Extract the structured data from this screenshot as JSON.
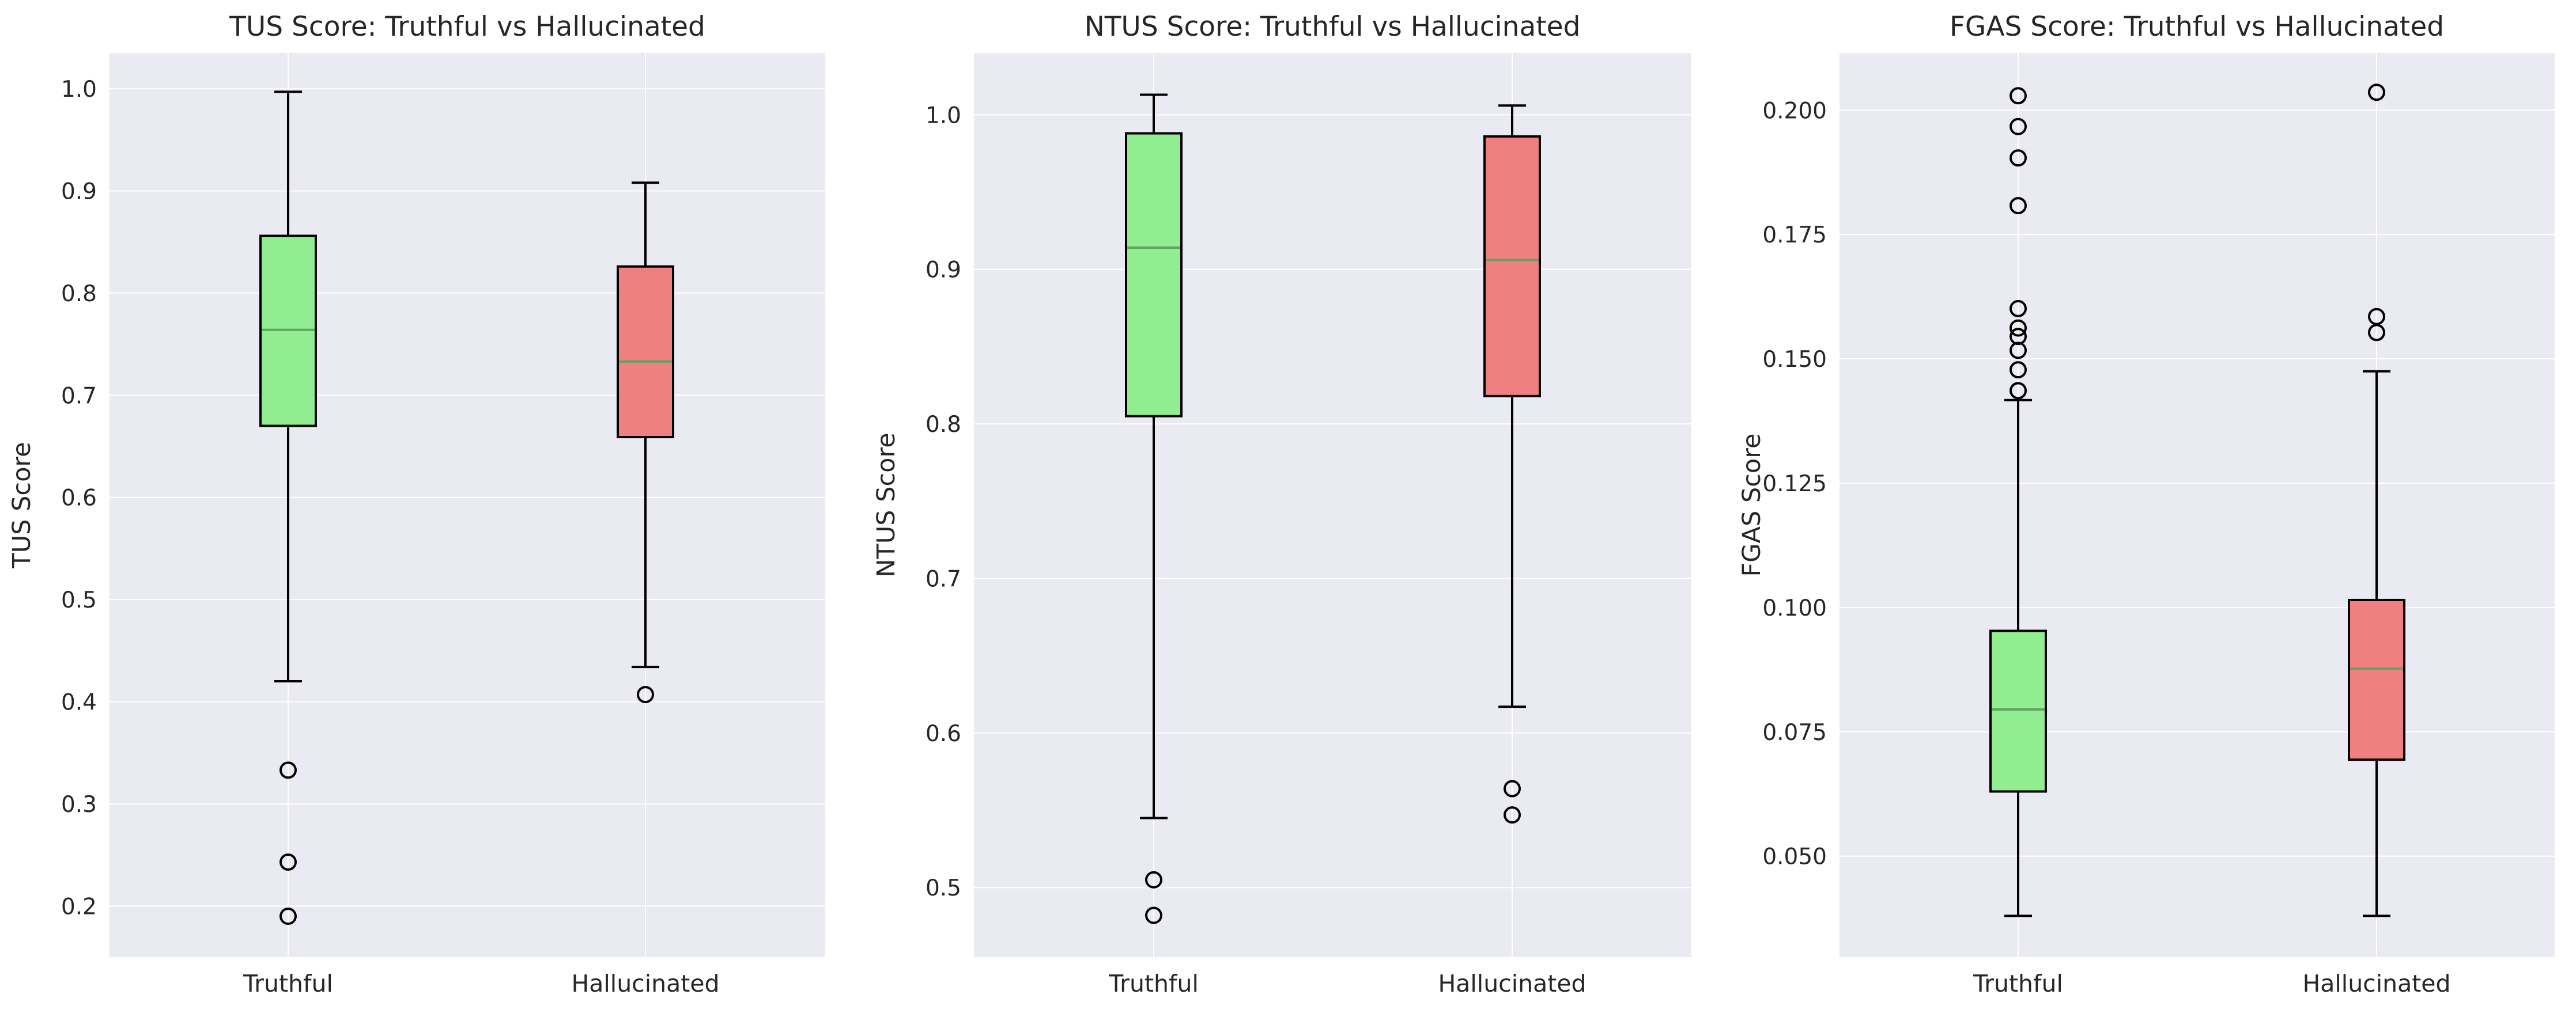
{
  "chart_data": [
    {
      "type": "box",
      "title": "TUS Score: Truthful vs Hallucinated",
      "ylabel": "TUS Score",
      "categories": [
        "Truthful",
        "Hallucinated"
      ],
      "ylim": [
        0.15,
        1.035
      ],
      "yticks": [
        "0.2",
        "0.3",
        "0.4",
        "0.5",
        "0.6",
        "0.7",
        "0.8",
        "0.9",
        "1.0"
      ],
      "grid": true,
      "boxes": [
        {
          "label": "Truthful",
          "color": "#90ee90",
          "whisker_low": 0.42,
          "q1": 0.67,
          "median": 0.764,
          "q3": 0.856,
          "whisker_high": 0.997,
          "fliers": [
            0.333,
            0.243,
            0.19
          ]
        },
        {
          "label": "Hallucinated",
          "color": "#f08080",
          "whisker_low": 0.434,
          "q1": 0.659,
          "median": 0.733,
          "q3": 0.826,
          "whisker_high": 0.908,
          "fliers": [
            0.407
          ]
        }
      ]
    },
    {
      "type": "box",
      "title": "NTUS Score: Truthful vs Hallucinated",
      "ylabel": "NTUS Score",
      "categories": [
        "Truthful",
        "Hallucinated"
      ],
      "ylim": [
        0.455,
        1.04
      ],
      "yticks": [
        "0.5",
        "0.6",
        "0.7",
        "0.8",
        "0.9",
        "1.0"
      ],
      "grid": true,
      "boxes": [
        {
          "label": "Truthful",
          "color": "#90ee90",
          "whisker_low": 0.545,
          "q1": 0.805,
          "median": 0.914,
          "q3": 0.988,
          "whisker_high": 1.013,
          "fliers": [
            0.505,
            0.482
          ]
        },
        {
          "label": "Hallucinated",
          "color": "#f08080",
          "whisker_low": 0.617,
          "q1": 0.818,
          "median": 0.906,
          "q3": 0.986,
          "whisker_high": 1.006,
          "fliers": [
            0.564,
            0.547
          ]
        }
      ]
    },
    {
      "type": "box",
      "title": "FGAS Score: Truthful vs Hallucinated",
      "ylabel": "FGAS Score",
      "categories": [
        "Truthful",
        "Hallucinated"
      ],
      "ylim": [
        0.0297,
        0.2115
      ],
      "yticks": [
        "0.050",
        "0.075",
        "0.100",
        "0.125",
        "0.150",
        "0.175",
        "0.200"
      ],
      "grid": true,
      "boxes": [
        {
          "label": "Truthful",
          "color": "#90ee90",
          "whisker_low": 0.038,
          "q1": 0.063,
          "median": 0.0795,
          "q3": 0.0953,
          "whisker_high": 0.1417,
          "fliers": [
            0.2029,
            0.1967,
            0.1904,
            0.1808,
            0.1601,
            0.1562,
            0.1545,
            0.1517,
            0.1478,
            0.1436
          ]
        },
        {
          "label": "Hallucinated",
          "color": "#f08080",
          "whisker_low": 0.038,
          "q1": 0.0694,
          "median": 0.0877,
          "q3": 0.1015,
          "whisker_high": 0.1475,
          "fliers": [
            0.2036,
            0.1585,
            0.1553
          ]
        }
      ]
    }
  ]
}
